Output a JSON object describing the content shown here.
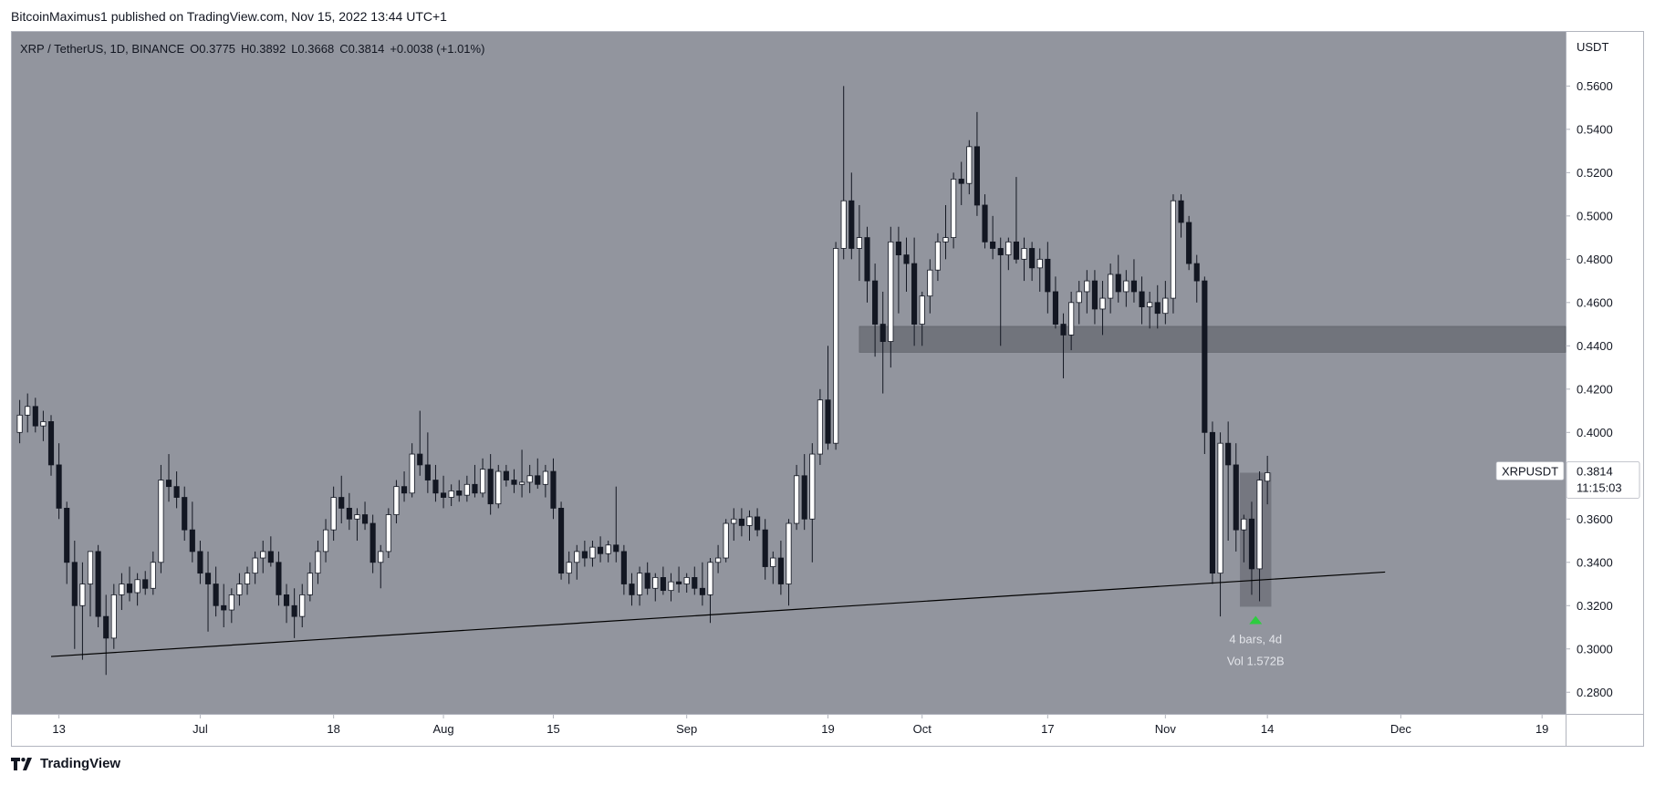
{
  "header": {
    "publisher_line": "BitcoinMaximus1 published on TradingView.com, Nov 15, 2022 13:44 UTC+1"
  },
  "footer": {
    "brand": "TradingView"
  },
  "colors": {
    "plot_bg": "#92959e",
    "candle_up": "#ffffff",
    "candle_down": "#131722",
    "wick": "#131722",
    "zone": "#6b6e76",
    "trendline": "#000000",
    "marker": "#2ecc40",
    "label_bg": "#ffffff"
  },
  "chart_data": {
    "type": "candlestick",
    "symbol_line": "XRP / TetherUS, 1D, BINANCE",
    "ohlc": {
      "o_label": "O",
      "o": "0.3775",
      "h_label": "H",
      "h": "0.3892",
      "l_label": "L",
      "l": "0.3668",
      "c_label": "C",
      "c": "0.3814",
      "change": "+0.0038 (+1.01%)"
    },
    "y_axis": {
      "unit": "USDT",
      "range": [
        0.27,
        0.585
      ],
      "ticks": [
        "0.5600",
        "0.5400",
        "0.5200",
        "0.5000",
        "0.4800",
        "0.4600",
        "0.4400",
        "0.4200",
        "0.4000",
        "0.3800",
        "0.3600",
        "0.3400",
        "0.3200",
        "0.3000",
        "0.2800"
      ],
      "tick_values": [
        0.56,
        0.54,
        0.52,
        0.5,
        0.48,
        0.46,
        0.44,
        0.42,
        0.4,
        0.38,
        0.36,
        0.34,
        0.32,
        0.3,
        0.28
      ]
    },
    "x_axis": {
      "start_date": "2022-06-07",
      "end_date": "2022-12-22",
      "ticks": [
        {
          "label": "13",
          "date": "2022-06-13"
        },
        {
          "label": "Jul",
          "date": "2022-07-01"
        },
        {
          "label": "18",
          "date": "2022-07-18"
        },
        {
          "label": "Aug",
          "date": "2022-08-01"
        },
        {
          "label": "15",
          "date": "2022-08-15"
        },
        {
          "label": "Sep",
          "date": "2022-09-01"
        },
        {
          "label": "19",
          "date": "2022-09-19"
        },
        {
          "label": "Oct",
          "date": "2022-10-01"
        },
        {
          "label": "17",
          "date": "2022-10-17"
        },
        {
          "label": "Nov",
          "date": "2022-11-01"
        },
        {
          "label": "14",
          "date": "2022-11-14"
        },
        {
          "label": "Dec",
          "date": "2022-12-01"
        },
        {
          "label": "19",
          "date": "2022-12-19"
        }
      ]
    },
    "first_candle_date": "2022-06-08",
    "candles": [
      [
        0.4,
        0.415,
        0.395,
        0.408
      ],
      [
        0.408,
        0.418,
        0.4,
        0.412
      ],
      [
        0.412,
        0.416,
        0.4,
        0.403
      ],
      [
        0.403,
        0.41,
        0.396,
        0.405
      ],
      [
        0.405,
        0.408,
        0.38,
        0.385
      ],
      [
        0.385,
        0.395,
        0.36,
        0.365
      ],
      [
        0.365,
        0.368,
        0.33,
        0.34
      ],
      [
        0.34,
        0.35,
        0.3,
        0.32
      ],
      [
        0.32,
        0.34,
        0.295,
        0.33
      ],
      [
        0.33,
        0.345,
        0.315,
        0.345
      ],
      [
        0.345,
        0.348,
        0.31,
        0.315
      ],
      [
        0.315,
        0.325,
        0.288,
        0.305
      ],
      [
        0.305,
        0.33,
        0.3,
        0.325
      ],
      [
        0.325,
        0.335,
        0.318,
        0.33
      ],
      [
        0.33,
        0.338,
        0.322,
        0.326
      ],
      [
        0.326,
        0.335,
        0.32,
        0.332
      ],
      [
        0.332,
        0.336,
        0.325,
        0.328
      ],
      [
        0.328,
        0.345,
        0.325,
        0.34
      ],
      [
        0.34,
        0.385,
        0.335,
        0.378
      ],
      [
        0.378,
        0.39,
        0.368,
        0.375
      ],
      [
        0.375,
        0.382,
        0.365,
        0.37
      ],
      [
        0.37,
        0.375,
        0.35,
        0.355
      ],
      [
        0.355,
        0.368,
        0.34,
        0.345
      ],
      [
        0.345,
        0.35,
        0.33,
        0.335
      ],
      [
        0.335,
        0.345,
        0.308,
        0.33
      ],
      [
        0.33,
        0.338,
        0.315,
        0.32
      ],
      [
        0.32,
        0.33,
        0.31,
        0.318
      ],
      [
        0.318,
        0.328,
        0.312,
        0.325
      ],
      [
        0.325,
        0.335,
        0.32,
        0.33
      ],
      [
        0.33,
        0.338,
        0.325,
        0.335
      ],
      [
        0.335,
        0.345,
        0.33,
        0.342
      ],
      [
        0.342,
        0.35,
        0.335,
        0.345
      ],
      [
        0.345,
        0.352,
        0.338,
        0.34
      ],
      [
        0.34,
        0.345,
        0.32,
        0.325
      ],
      [
        0.325,
        0.33,
        0.312,
        0.32
      ],
      [
        0.32,
        0.328,
        0.305,
        0.315
      ],
      [
        0.315,
        0.33,
        0.31,
        0.325
      ],
      [
        0.325,
        0.34,
        0.322,
        0.335
      ],
      [
        0.335,
        0.35,
        0.33,
        0.345
      ],
      [
        0.345,
        0.36,
        0.34,
        0.355
      ],
      [
        0.355,
        0.375,
        0.35,
        0.37
      ],
      [
        0.37,
        0.38,
        0.358,
        0.365
      ],
      [
        0.365,
        0.372,
        0.355,
        0.36
      ],
      [
        0.36,
        0.365,
        0.35,
        0.362
      ],
      [
        0.362,
        0.368,
        0.355,
        0.358
      ],
      [
        0.358,
        0.362,
        0.335,
        0.34
      ],
      [
        0.34,
        0.348,
        0.328,
        0.345
      ],
      [
        0.345,
        0.365,
        0.342,
        0.362
      ],
      [
        0.362,
        0.378,
        0.358,
        0.375
      ],
      [
        0.375,
        0.382,
        0.368,
        0.372
      ],
      [
        0.372,
        0.395,
        0.37,
        0.39
      ],
      [
        0.39,
        0.41,
        0.38,
        0.385
      ],
      [
        0.385,
        0.4,
        0.372,
        0.378
      ],
      [
        0.378,
        0.385,
        0.368,
        0.372
      ],
      [
        0.372,
        0.38,
        0.365,
        0.37
      ],
      [
        0.37,
        0.376,
        0.366,
        0.373
      ],
      [
        0.373,
        0.378,
        0.368,
        0.371
      ],
      [
        0.371,
        0.38,
        0.368,
        0.376
      ],
      [
        0.376,
        0.385,
        0.37,
        0.372
      ],
      [
        0.372,
        0.388,
        0.37,
        0.383
      ],
      [
        0.383,
        0.39,
        0.362,
        0.367
      ],
      [
        0.367,
        0.385,
        0.365,
        0.382
      ],
      [
        0.382,
        0.385,
        0.375,
        0.378
      ],
      [
        0.378,
        0.383,
        0.372,
        0.376
      ],
      [
        0.376,
        0.392,
        0.37,
        0.377
      ],
      [
        0.377,
        0.385,
        0.372,
        0.38
      ],
      [
        0.38,
        0.388,
        0.374,
        0.376
      ],
      [
        0.376,
        0.385,
        0.37,
        0.382
      ],
      [
        0.382,
        0.388,
        0.36,
        0.365
      ],
      [
        0.365,
        0.368,
        0.332,
        0.335
      ],
      [
        0.335,
        0.345,
        0.33,
        0.34
      ],
      [
        0.34,
        0.348,
        0.332,
        0.345
      ],
      [
        0.345,
        0.35,
        0.338,
        0.342
      ],
      [
        0.342,
        0.35,
        0.338,
        0.347
      ],
      [
        0.347,
        0.352,
        0.34,
        0.344
      ],
      [
        0.344,
        0.35,
        0.34,
        0.348
      ],
      [
        0.348,
        0.375,
        0.34,
        0.345
      ],
      [
        0.345,
        0.348,
        0.325,
        0.33
      ],
      [
        0.33,
        0.335,
        0.32,
        0.325
      ],
      [
        0.325,
        0.338,
        0.32,
        0.335
      ],
      [
        0.335,
        0.34,
        0.325,
        0.328
      ],
      [
        0.328,
        0.335,
        0.322,
        0.333
      ],
      [
        0.333,
        0.338,
        0.325,
        0.327
      ],
      [
        0.327,
        0.335,
        0.322,
        0.331
      ],
      [
        0.331,
        0.338,
        0.326,
        0.33
      ],
      [
        0.33,
        0.335,
        0.326,
        0.333
      ],
      [
        0.333,
        0.338,
        0.325,
        0.328
      ],
      [
        0.328,
        0.34,
        0.32,
        0.325
      ],
      [
        0.325,
        0.342,
        0.312,
        0.34
      ],
      [
        0.34,
        0.348,
        0.335,
        0.342
      ],
      [
        0.342,
        0.36,
        0.34,
        0.358
      ],
      [
        0.358,
        0.365,
        0.35,
        0.36
      ],
      [
        0.36,
        0.365,
        0.352,
        0.357
      ],
      [
        0.357,
        0.364,
        0.35,
        0.361
      ],
      [
        0.361,
        0.365,
        0.352,
        0.355
      ],
      [
        0.355,
        0.36,
        0.332,
        0.338
      ],
      [
        0.338,
        0.345,
        0.33,
        0.342
      ],
      [
        0.342,
        0.35,
        0.325,
        0.33
      ],
      [
        0.33,
        0.36,
        0.32,
        0.358
      ],
      [
        0.358,
        0.385,
        0.355,
        0.38
      ],
      [
        0.38,
        0.39,
        0.355,
        0.36
      ],
      [
        0.36,
        0.395,
        0.34,
        0.39
      ],
      [
        0.39,
        0.42,
        0.385,
        0.415
      ],
      [
        0.415,
        0.44,
        0.392,
        0.395
      ],
      [
        0.395,
        0.488,
        0.392,
        0.485
      ],
      [
        0.485,
        0.56,
        0.48,
        0.507
      ],
      [
        0.507,
        0.52,
        0.48,
        0.485
      ],
      [
        0.485,
        0.505,
        0.47,
        0.49
      ],
      [
        0.49,
        0.495,
        0.46,
        0.47
      ],
      [
        0.47,
        0.478,
        0.435,
        0.45
      ],
      [
        0.45,
        0.465,
        0.418,
        0.442
      ],
      [
        0.442,
        0.495,
        0.43,
        0.488
      ],
      [
        0.488,
        0.495,
        0.455,
        0.482
      ],
      [
        0.482,
        0.49,
        0.465,
        0.478
      ],
      [
        0.478,
        0.49,
        0.44,
        0.45
      ],
      [
        0.45,
        0.465,
        0.44,
        0.463
      ],
      [
        0.463,
        0.48,
        0.455,
        0.475
      ],
      [
        0.475,
        0.492,
        0.47,
        0.488
      ],
      [
        0.488,
        0.505,
        0.48,
        0.49
      ],
      [
        0.49,
        0.52,
        0.485,
        0.517
      ],
      [
        0.517,
        0.525,
        0.505,
        0.515
      ],
      [
        0.515,
        0.535,
        0.51,
        0.532
      ],
      [
        0.532,
        0.548,
        0.5,
        0.505
      ],
      [
        0.505,
        0.51,
        0.485,
        0.488
      ],
      [
        0.488,
        0.5,
        0.48,
        0.485
      ],
      [
        0.485,
        0.49,
        0.44,
        0.482
      ],
      [
        0.482,
        0.49,
        0.475,
        0.488
      ],
      [
        0.488,
        0.518,
        0.478,
        0.48
      ],
      [
        0.48,
        0.49,
        0.47,
        0.485
      ],
      [
        0.485,
        0.488,
        0.47,
        0.476
      ],
      [
        0.476,
        0.485,
        0.465,
        0.48
      ],
      [
        0.48,
        0.488,
        0.455,
        0.465
      ],
      [
        0.465,
        0.472,
        0.448,
        0.45
      ],
      [
        0.45,
        0.455,
        0.425,
        0.445
      ],
      [
        0.445,
        0.465,
        0.438,
        0.46
      ],
      [
        0.46,
        0.47,
        0.45,
        0.465
      ],
      [
        0.465,
        0.475,
        0.455,
        0.47
      ],
      [
        0.47,
        0.475,
        0.45,
        0.457
      ],
      [
        0.457,
        0.47,
        0.445,
        0.462
      ],
      [
        0.462,
        0.478,
        0.455,
        0.473
      ],
      [
        0.473,
        0.482,
        0.46,
        0.465
      ],
      [
        0.465,
        0.475,
        0.458,
        0.47
      ],
      [
        0.47,
        0.48,
        0.46,
        0.465
      ],
      [
        0.465,
        0.472,
        0.45,
        0.458
      ],
      [
        0.458,
        0.465,
        0.448,
        0.46
      ],
      [
        0.46,
        0.468,
        0.448,
        0.455
      ],
      [
        0.455,
        0.47,
        0.45,
        0.462
      ],
      [
        0.462,
        0.51,
        0.455,
        0.507
      ],
      [
        0.507,
        0.51,
        0.49,
        0.497
      ],
      [
        0.497,
        0.5,
        0.475,
        0.478
      ],
      [
        0.478,
        0.482,
        0.46,
        0.47
      ],
      [
        0.47,
        0.472,
        0.39,
        0.4
      ],
      [
        0.4,
        0.405,
        0.33,
        0.335
      ],
      [
        0.335,
        0.4,
        0.315,
        0.395
      ],
      [
        0.395,
        0.405,
        0.35,
        0.385
      ],
      [
        0.385,
        0.395,
        0.345,
        0.355
      ],
      [
        0.355,
        0.362,
        0.34,
        0.36
      ],
      [
        0.36,
        0.368,
        0.325,
        0.337
      ],
      [
        0.337,
        0.382,
        0.322,
        0.378
      ],
      [
        0.3775,
        0.3892,
        0.3668,
        0.3814
      ]
    ],
    "support_zone": {
      "from_date": "2022-09-23",
      "to_date": "2022-12-22",
      "low": 0.437,
      "high": 0.449
    },
    "trendline": {
      "start_date": "2022-06-12",
      "start_price": 0.2965,
      "end_date": "2022-11-29",
      "end_price": 0.3355
    },
    "range_measure": {
      "from_date": "2022-11-11",
      "to_date": "2022-11-15",
      "low": 0.3195,
      "high": 0.3814,
      "text_bars": "4 bars, 4d",
      "text_vol": "Vol 1.572B"
    },
    "price_label": {
      "symbol": "XRPUSDT",
      "price": "0.3814",
      "countdown": "11:15:03"
    }
  }
}
